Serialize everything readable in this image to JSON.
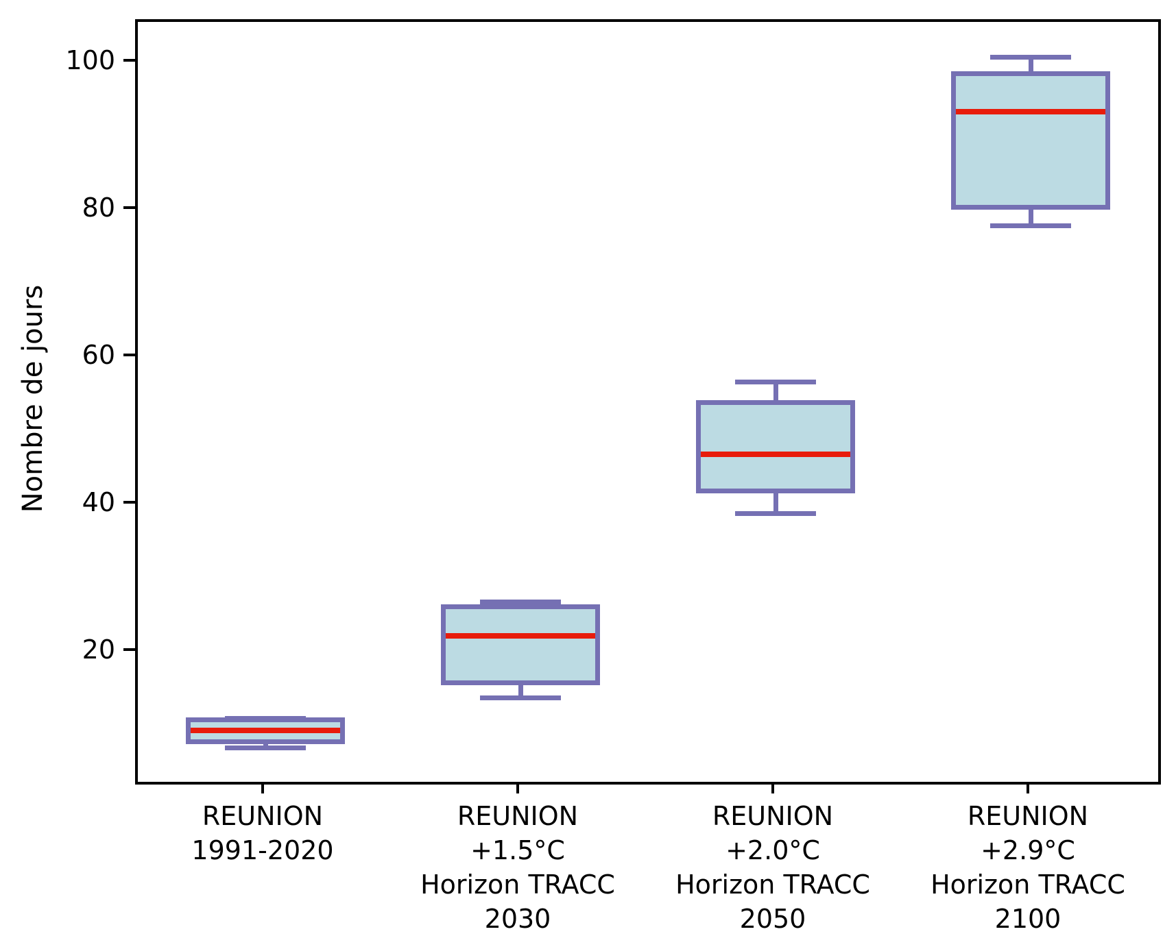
{
  "chart_data": {
    "type": "box",
    "title": "",
    "xlabel": "",
    "ylabel": "Nombre de jours",
    "yticks": [
      20,
      40,
      60,
      80,
      100
    ],
    "ylim": [
      2.4,
      105.6
    ],
    "grid": false,
    "legend": null,
    "categories": [
      "REUNION\n1991-2020",
      "REUNION\n+1.5°C\nHorizon TRACC\n2030",
      "REUNION\n+2.0°C\nHorizon TRACC\n2050",
      "REUNION\n+2.9°C\nHorizon TRACC\n2100"
    ],
    "series": [
      {
        "name": "REUNION 1991-2020",
        "whislo": 7.0,
        "q1": 7.8,
        "med": 9.4,
        "q3": 10.8,
        "whishi": 11.0
      },
      {
        "name": "REUNION +1.5°C Horizon TRACC 2030",
        "whislo": 13.8,
        "q1": 15.8,
        "med": 22.2,
        "q3": 26.2,
        "whishi": 26.8
      },
      {
        "name": "REUNION +2.0°C Horizon TRACC 2050",
        "whislo": 38.8,
        "q1": 41.9,
        "med": 46.9,
        "q3": 53.9,
        "whishi": 56.7
      },
      {
        "name": "REUNION +2.9°C Horizon TRACC 2100",
        "whislo": 77.9,
        "q1": 80.4,
        "med": 93.4,
        "q3": 98.6,
        "whishi": 100.8
      }
    ],
    "colors": {
      "box_edge": "#7570b3",
      "box_fill": "#bcdbe3",
      "median": "#e81c0c",
      "axis": "#000000",
      "text": "#000000"
    }
  }
}
